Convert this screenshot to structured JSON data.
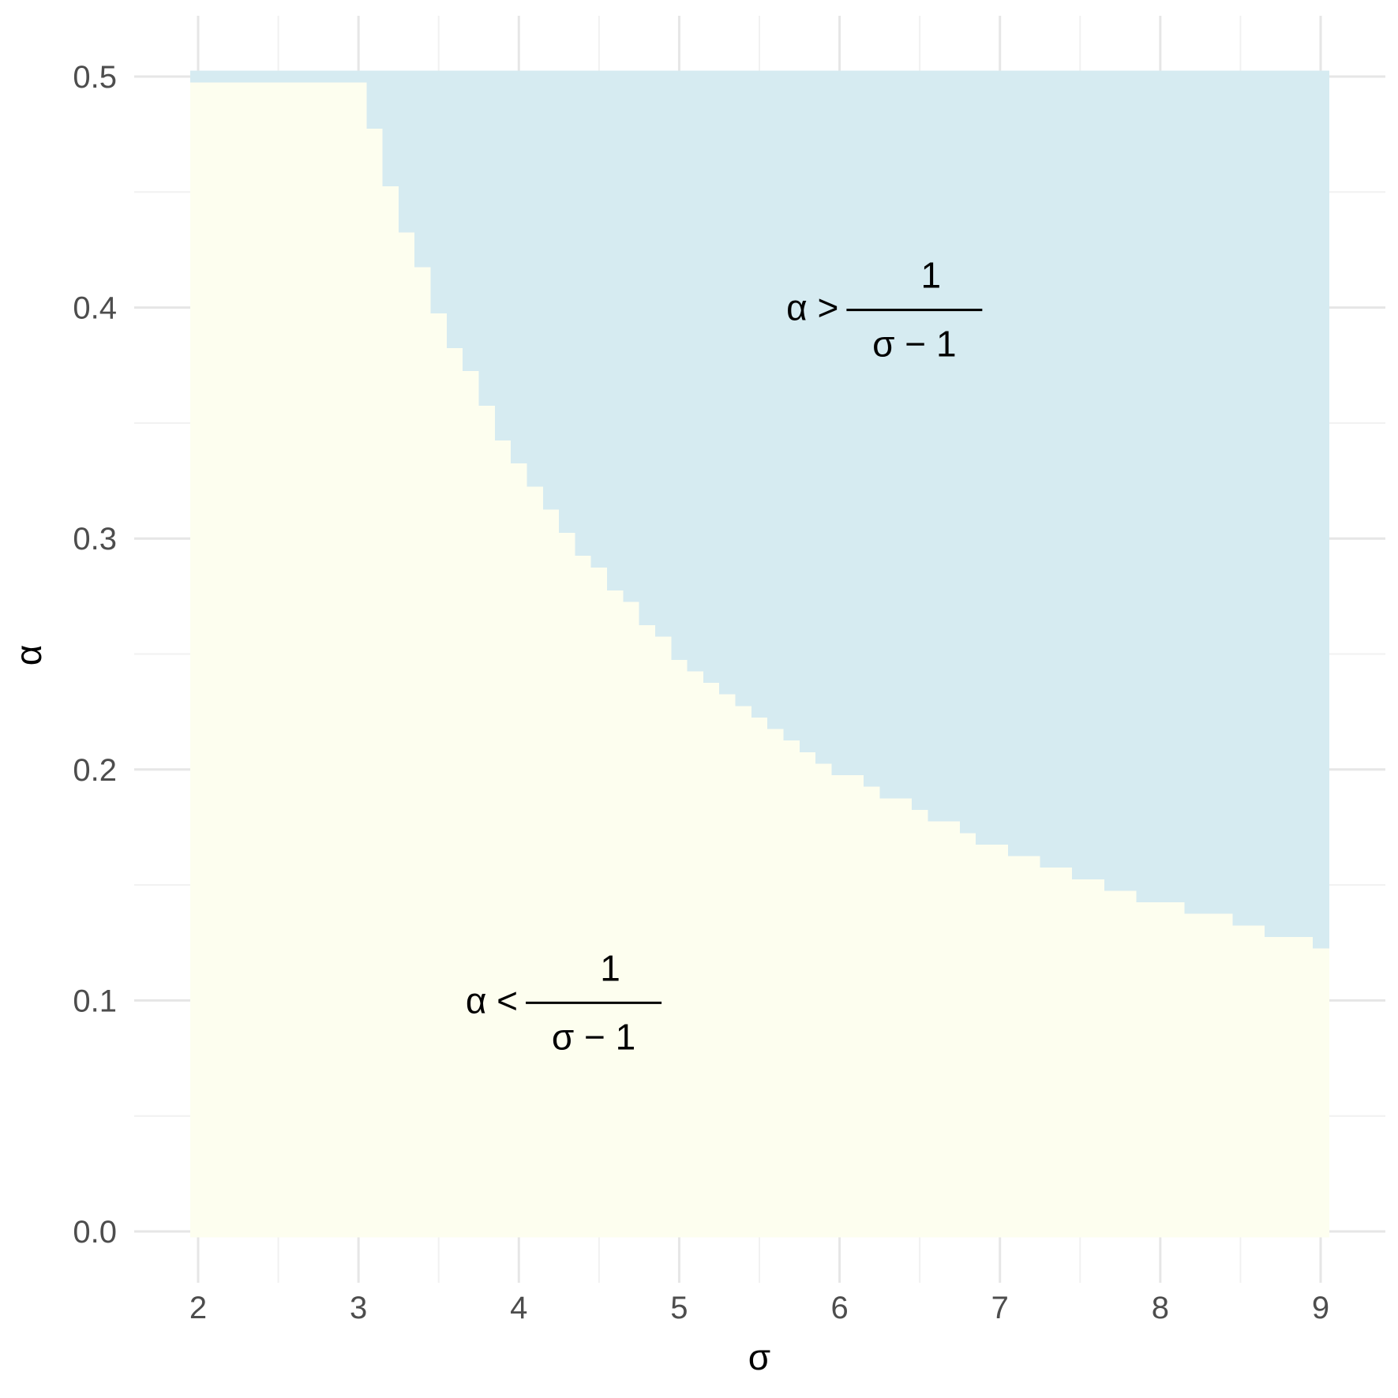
{
  "chart_data": {
    "type": "heatmap",
    "xlabel": "σ",
    "ylabel": "α",
    "xlim": [
      2,
      9
    ],
    "ylim": [
      0,
      0.5
    ],
    "x_ticks": [
      "2",
      "3",
      "4",
      "5",
      "6",
      "7",
      "8",
      "9"
    ],
    "y_ticks": [
      "0.0",
      "0.1",
      "0.2",
      "0.3",
      "0.4",
      "0.5"
    ],
    "grid": true,
    "boundary": "α = 1/(σ − 1)",
    "regions": [
      {
        "condition": "α < 1/(σ − 1)",
        "color": "#fdfeef",
        "label": {
          "lhs": "α <",
          "numerator": "1",
          "denominator": "σ − 1"
        },
        "label_at": {
          "sigma": 4.25,
          "alpha": 0.1
        }
      },
      {
        "condition": "α > 1/(σ − 1)",
        "color": "#d6ebf1",
        "label": {
          "lhs": "α >",
          "numerator": "1",
          "denominator": "σ − 1"
        },
        "label_at": {
          "sigma": 6.25,
          "alpha": 0.4
        }
      }
    ],
    "sigma_cell_width": 0.1,
    "alpha_cell_height": 0.005
  }
}
